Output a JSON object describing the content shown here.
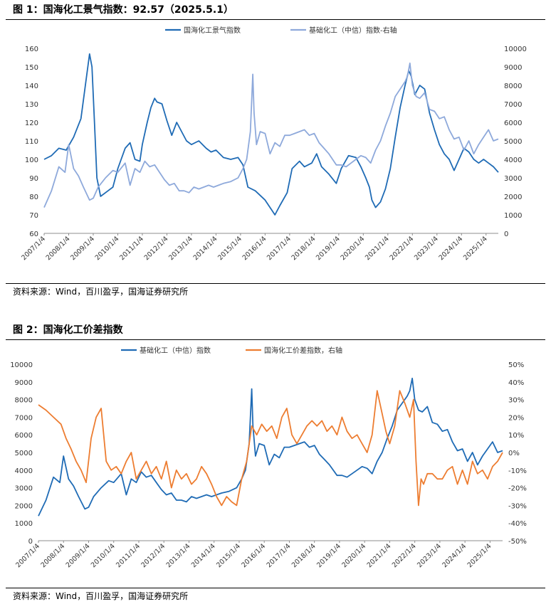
{
  "figures": [
    {
      "title": "图 1：国海化工景气指数：92.57（2025.5.1）",
      "source": "资料来源：Wind，百川盈孚，国海证券研究所"
    },
    {
      "title": "图 2：国海化工价差指数",
      "source": "资料来源：Wind，百川盈孚，国海证券研究所"
    }
  ],
  "chart_data": [
    {
      "type": "line",
      "title": "",
      "x_tick_labels": [
        "2007/1/4",
        "2008/1/4",
        "2009/1/4",
        "2010/1/4",
        "2011/1/4",
        "2012/1/4",
        "2013/1/4",
        "2014/1/4",
        "2015/1/4",
        "2016/1/4",
        "2017/1/4",
        "2018/1/4",
        "2019/1/4",
        "2020/1/4",
        "2021/1/4",
        "2022/1/4",
        "2023/1/4",
        "2024/1/4",
        "2025/1/4"
      ],
      "xlim": [
        2007.0,
        2025.5
      ],
      "y_left": {
        "range": [
          60,
          160
        ],
        "ticks": [
          60,
          70,
          80,
          90,
          100,
          110,
          120,
          130,
          140,
          150,
          160
        ],
        "labels": [
          "60",
          "70",
          "80",
          "90",
          "100",
          "110",
          "120",
          "130",
          "140",
          "150",
          "160"
        ]
      },
      "y_right": {
        "range": [
          0,
          10000
        ],
        "ticks": [
          0,
          1000,
          2000,
          3000,
          4000,
          5000,
          6000,
          7000,
          8000,
          9000,
          10000
        ],
        "labels": [
          "0",
          "1000",
          "2000",
          "3000",
          "4000",
          "5000",
          "6000",
          "7000",
          "8000",
          "9000",
          "10000"
        ]
      },
      "legend_position": "top-center",
      "grid": false,
      "series": [
        {
          "name": "国海化工景气指数",
          "color": "#1f6bb5",
          "axis": "left",
          "x": [
            2007.0,
            2007.3,
            2007.6,
            2007.9,
            2008.2,
            2008.5,
            2008.7,
            2008.85,
            2008.95,
            2009.05,
            2009.15,
            2009.3,
            2009.6,
            2009.8,
            2010.0,
            2010.3,
            2010.5,
            2010.7,
            2010.9,
            2011.0,
            2011.2,
            2011.35,
            2011.5,
            2011.6,
            2011.8,
            2012.0,
            2012.2,
            2012.4,
            2012.6,
            2012.8,
            2013.0,
            2013.3,
            2013.6,
            2013.8,
            2014.0,
            2014.3,
            2014.6,
            2014.9,
            2015.0,
            2015.1,
            2015.3,
            2015.6,
            2016.0,
            2016.2,
            2016.4,
            2016.6,
            2016.9,
            2017.1,
            2017.4,
            2017.6,
            2017.9,
            2018.1,
            2018.3,
            2018.6,
            2018.9,
            2019.1,
            2019.4,
            2019.7,
            2019.9,
            2020.1,
            2020.25,
            2020.35,
            2020.5,
            2020.7,
            2020.9,
            2021.1,
            2021.3,
            2021.5,
            2021.7,
            2021.85,
            2021.95,
            2022.1,
            2022.3,
            2022.5,
            2022.7,
            2022.9,
            2023.1,
            2023.3,
            2023.5,
            2023.7,
            2023.9,
            2024.1,
            2024.3,
            2024.5,
            2024.7,
            2024.9,
            2025.1,
            2025.3,
            2025.5
          ],
          "values": [
            100,
            102,
            106,
            105,
            112,
            122,
            142,
            157,
            150,
            120,
            90,
            80,
            83,
            85,
            95,
            106,
            109,
            100,
            99,
            108,
            120,
            128,
            133,
            131,
            130,
            121,
            113,
            120,
            115,
            110,
            108,
            110,
            106,
            104,
            105,
            101,
            100,
            101,
            99,
            97,
            85,
            83,
            78,
            74,
            70,
            75,
            82,
            95,
            99,
            96,
            98,
            103,
            96,
            92,
            87,
            95,
            102,
            101,
            96,
            90,
            85,
            78,
            74,
            77,
            84,
            95,
            112,
            128,
            140,
            148,
            145,
            135,
            140,
            138,
            125,
            116,
            108,
            103,
            100,
            94,
            100,
            106,
            104,
            100,
            98,
            100,
            98,
            96,
            93
          ]
        },
        {
          "name": "基础化工（中信）指数-右轴",
          "color": "#8ea9db",
          "axis": "right",
          "x": [
            2007.0,
            2007.3,
            2007.6,
            2007.85,
            2008.0,
            2008.2,
            2008.4,
            2008.6,
            2008.85,
            2009.0,
            2009.2,
            2009.5,
            2009.8,
            2010.0,
            2010.3,
            2010.5,
            2010.7,
            2010.9,
            2011.1,
            2011.3,
            2011.5,
            2011.7,
            2011.9,
            2012.1,
            2012.3,
            2012.5,
            2012.7,
            2012.9,
            2013.1,
            2013.3,
            2013.5,
            2013.7,
            2013.9,
            2014.1,
            2014.3,
            2014.6,
            2014.9,
            2015.1,
            2015.25,
            2015.4,
            2015.5,
            2015.55,
            2015.65,
            2015.8,
            2016.0,
            2016.2,
            2016.4,
            2016.6,
            2016.8,
            2017.0,
            2017.2,
            2017.4,
            2017.6,
            2017.8,
            2018.0,
            2018.2,
            2018.4,
            2018.6,
            2018.9,
            2019.1,
            2019.3,
            2019.5,
            2019.7,
            2019.9,
            2020.1,
            2020.3,
            2020.5,
            2020.7,
            2020.9,
            2021.1,
            2021.3,
            2021.5,
            2021.7,
            2021.8,
            2021.9,
            2022.0,
            2022.15,
            2022.3,
            2022.5,
            2022.7,
            2022.9,
            2023.1,
            2023.3,
            2023.5,
            2023.7,
            2023.9,
            2024.1,
            2024.3,
            2024.5,
            2024.7,
            2024.9,
            2025.1,
            2025.3,
            2025.5
          ],
          "values": [
            1400,
            2300,
            3600,
            3300,
            4800,
            3500,
            3100,
            2500,
            1800,
            1900,
            2500,
            3000,
            3400,
            3300,
            3800,
            2600,
            3500,
            3300,
            3900,
            3600,
            3700,
            3300,
            2900,
            2600,
            2700,
            2300,
            2300,
            2200,
            2500,
            2400,
            2500,
            2600,
            2500,
            2600,
            2700,
            2800,
            3000,
            3500,
            4000,
            5500,
            8600,
            6500,
            4800,
            5500,
            5400,
            4300,
            4900,
            4700,
            5300,
            5300,
            5400,
            5500,
            5600,
            5300,
            5400,
            4900,
            4600,
            4300,
            3700,
            3700,
            3600,
            3800,
            4000,
            4200,
            4100,
            3800,
            4500,
            5000,
            5800,
            6500,
            7400,
            7800,
            8200,
            8500,
            9200,
            8000,
            7400,
            7300,
            7600,
            6700,
            6600,
            6200,
            6300,
            5600,
            5100,
            5200,
            4500,
            5000,
            4300,
            4800,
            5200,
            5600,
            5000,
            5100
          ]
        }
      ]
    },
    {
      "type": "line",
      "title": "",
      "x_tick_labels": [
        "2007/1/4",
        "2008/1/4",
        "2009/1/4",
        "2010/1/4",
        "2011/1/4",
        "2012/1/4",
        "2013/1/4",
        "2014/1/4",
        "2015/1/4",
        "2016/1/4",
        "2017/1/4",
        "2018/1/4",
        "2019/1/4",
        "2020/1/4",
        "2021/1/4",
        "2022/1/4",
        "2023/1/4",
        "2024/1/4",
        "2025/1/4"
      ],
      "xlim": [
        2007.0,
        2025.5
      ],
      "y_left": {
        "range": [
          0,
          10000
        ],
        "ticks": [
          0,
          1000,
          2000,
          3000,
          4000,
          5000,
          6000,
          7000,
          8000,
          9000,
          10000
        ],
        "labels": [
          "0",
          "1000",
          "2000",
          "3000",
          "4000",
          "5000",
          "6000",
          "7000",
          "8000",
          "9000",
          "10000"
        ]
      },
      "y_right": {
        "range": [
          -50,
          50
        ],
        "ticks": [
          -50,
          -40,
          -30,
          -20,
          -10,
          0,
          10,
          20,
          30,
          40,
          50
        ],
        "labels": [
          "-50%",
          "-40%",
          "-30%",
          "-20%",
          "-10%",
          "0%",
          "10%",
          "20%",
          "30%",
          "40%",
          "50%"
        ]
      },
      "legend_position": "top-center",
      "grid": false,
      "series": [
        {
          "name": "基础化工（中信）指数",
          "color": "#1f6bb5",
          "axis": "left",
          "x": [
            2007.0,
            2007.3,
            2007.6,
            2007.85,
            2008.0,
            2008.2,
            2008.4,
            2008.6,
            2008.85,
            2009.0,
            2009.2,
            2009.5,
            2009.8,
            2010.0,
            2010.3,
            2010.5,
            2010.7,
            2010.9,
            2011.1,
            2011.3,
            2011.5,
            2011.7,
            2011.9,
            2012.1,
            2012.3,
            2012.5,
            2012.7,
            2012.9,
            2013.1,
            2013.3,
            2013.5,
            2013.7,
            2013.9,
            2014.1,
            2014.3,
            2014.6,
            2014.9,
            2015.1,
            2015.25,
            2015.4,
            2015.5,
            2015.55,
            2015.65,
            2015.8,
            2016.0,
            2016.2,
            2016.4,
            2016.6,
            2016.8,
            2017.0,
            2017.2,
            2017.4,
            2017.6,
            2017.8,
            2018.0,
            2018.2,
            2018.4,
            2018.6,
            2018.9,
            2019.1,
            2019.3,
            2019.5,
            2019.7,
            2019.9,
            2020.1,
            2020.3,
            2020.5,
            2020.7,
            2020.9,
            2021.1,
            2021.3,
            2021.5,
            2021.7,
            2021.8,
            2021.9,
            2022.0,
            2022.15,
            2022.3,
            2022.5,
            2022.7,
            2022.9,
            2023.1,
            2023.3,
            2023.5,
            2023.7,
            2023.9,
            2024.1,
            2024.3,
            2024.5,
            2024.7,
            2024.9,
            2025.1,
            2025.3,
            2025.5
          ],
          "values": [
            1400,
            2300,
            3600,
            3300,
            4800,
            3500,
            3100,
            2500,
            1800,
            1900,
            2500,
            3000,
            3400,
            3300,
            3800,
            2600,
            3500,
            3300,
            3900,
            3600,
            3700,
            3300,
            2900,
            2600,
            2700,
            2300,
            2300,
            2200,
            2500,
            2400,
            2500,
            2600,
            2500,
            2600,
            2700,
            2800,
            3000,
            3500,
            4000,
            5500,
            8600,
            6500,
            4800,
            5500,
            5400,
            4300,
            4900,
            4700,
            5300,
            5300,
            5400,
            5500,
            5600,
            5300,
            5400,
            4900,
            4600,
            4300,
            3700,
            3700,
            3600,
            3800,
            4000,
            4200,
            4100,
            3800,
            4500,
            5000,
            5800,
            6500,
            7400,
            7800,
            8200,
            8500,
            9200,
            8000,
            7400,
            7300,
            7600,
            6700,
            6600,
            6200,
            6300,
            5600,
            5100,
            5200,
            4500,
            5000,
            4300,
            4800,
            5200,
            5600,
            5000,
            5100
          ]
        },
        {
          "name": "国海化工价差指数，右轴",
          "color": "#ed7d31",
          "axis": "right",
          "x": [
            2007.0,
            2007.3,
            2007.6,
            2007.9,
            2008.1,
            2008.3,
            2008.5,
            2008.7,
            2008.9,
            2009.1,
            2009.3,
            2009.5,
            2009.7,
            2009.9,
            2010.1,
            2010.3,
            2010.5,
            2010.7,
            2010.9,
            2011.1,
            2011.3,
            2011.5,
            2011.7,
            2011.9,
            2012.1,
            2012.3,
            2012.5,
            2012.7,
            2012.9,
            2013.1,
            2013.3,
            2013.5,
            2013.7,
            2013.9,
            2014.1,
            2014.3,
            2014.5,
            2014.7,
            2014.9,
            2015.1,
            2015.3,
            2015.5,
            2015.7,
            2015.9,
            2016.1,
            2016.3,
            2016.5,
            2016.7,
            2016.9,
            2017.1,
            2017.3,
            2017.5,
            2017.7,
            2017.9,
            2018.1,
            2018.3,
            2018.5,
            2018.7,
            2018.9,
            2019.1,
            2019.3,
            2019.5,
            2019.7,
            2019.9,
            2020.1,
            2020.3,
            2020.5,
            2020.7,
            2020.85,
            2021.0,
            2021.2,
            2021.4,
            2021.6,
            2021.8,
            2021.95,
            2022.05,
            2022.15,
            2022.25,
            2022.35,
            2022.5,
            2022.7,
            2022.9,
            2023.1,
            2023.3,
            2023.5,
            2023.7,
            2023.9,
            2024.1,
            2024.3,
            2024.5,
            2024.7,
            2024.9,
            2025.1,
            2025.3,
            2025.5
          ],
          "values": [
            27,
            24,
            20,
            16,
            8,
            2,
            -5,
            -10,
            -17,
            8,
            20,
            25,
            -5,
            -10,
            -8,
            -12,
            -5,
            0,
            -15,
            -10,
            -5,
            -12,
            -8,
            -15,
            -5,
            -20,
            -10,
            -15,
            -12,
            -18,
            -15,
            -8,
            -12,
            -18,
            -25,
            -30,
            -25,
            -28,
            -30,
            -15,
            -5,
            15,
            10,
            16,
            12,
            15,
            8,
            20,
            25,
            10,
            5,
            10,
            15,
            18,
            15,
            18,
            12,
            15,
            10,
            20,
            12,
            8,
            10,
            5,
            0,
            10,
            35,
            22,
            12,
            5,
            15,
            35,
            28,
            20,
            30,
            -5,
            -30,
            -15,
            -18,
            -12,
            -12,
            -15,
            -15,
            -10,
            -8,
            -18,
            -10,
            -18,
            -5,
            -12,
            -10,
            -15,
            -8,
            -5,
            0
          ]
        }
      ]
    }
  ]
}
